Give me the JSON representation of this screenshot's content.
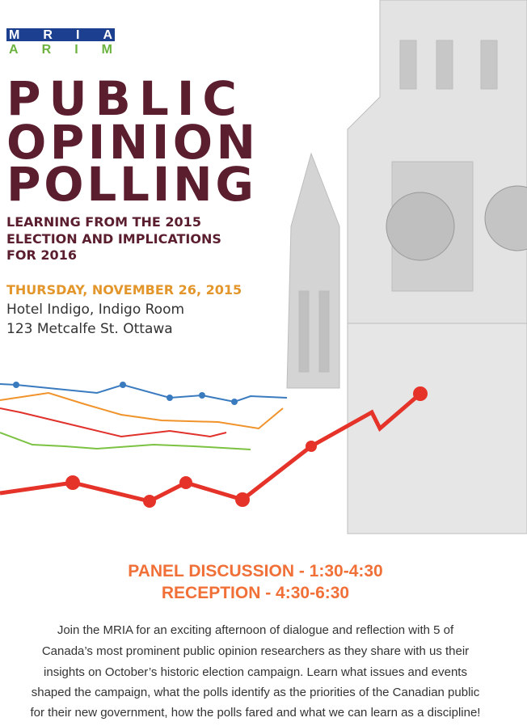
{
  "logo": {
    "top": "MRIA",
    "bottom": "ARIM"
  },
  "title": {
    "lines": [
      "PUBLIC",
      "OPINION",
      "POLLING"
    ]
  },
  "subtitle": {
    "lines": [
      "LEARNING FROM THE 2015",
      "ELECTION AND IMPLICATIONS",
      "FOR 2016"
    ]
  },
  "date": "THURSDAY, NOVEMBER 26, 2015",
  "venue": {
    "lines": [
      "Hotel Indigo, Indigo Room",
      "123 Metcalfe St. Ottawa"
    ]
  },
  "schedule": {
    "lines": [
      "PANEL DISCUSSION - 1:30-4:30",
      "RECEPTION - 4:30-6:30"
    ]
  },
  "description": {
    "lines": [
      "Join the MRIA for an exciting afternoon of dialogue and reflection with 5 of",
      "Canada’s most prominent public opinion researchers as they share with us their",
      "insights on October’s historic election campaign. Learn what issues and events",
      "shaped the campaign, what the polls identify as the priorities of the Canadian public",
      "for their new government, how the polls fared and what we can learn as a discipline!"
    ]
  }
}
